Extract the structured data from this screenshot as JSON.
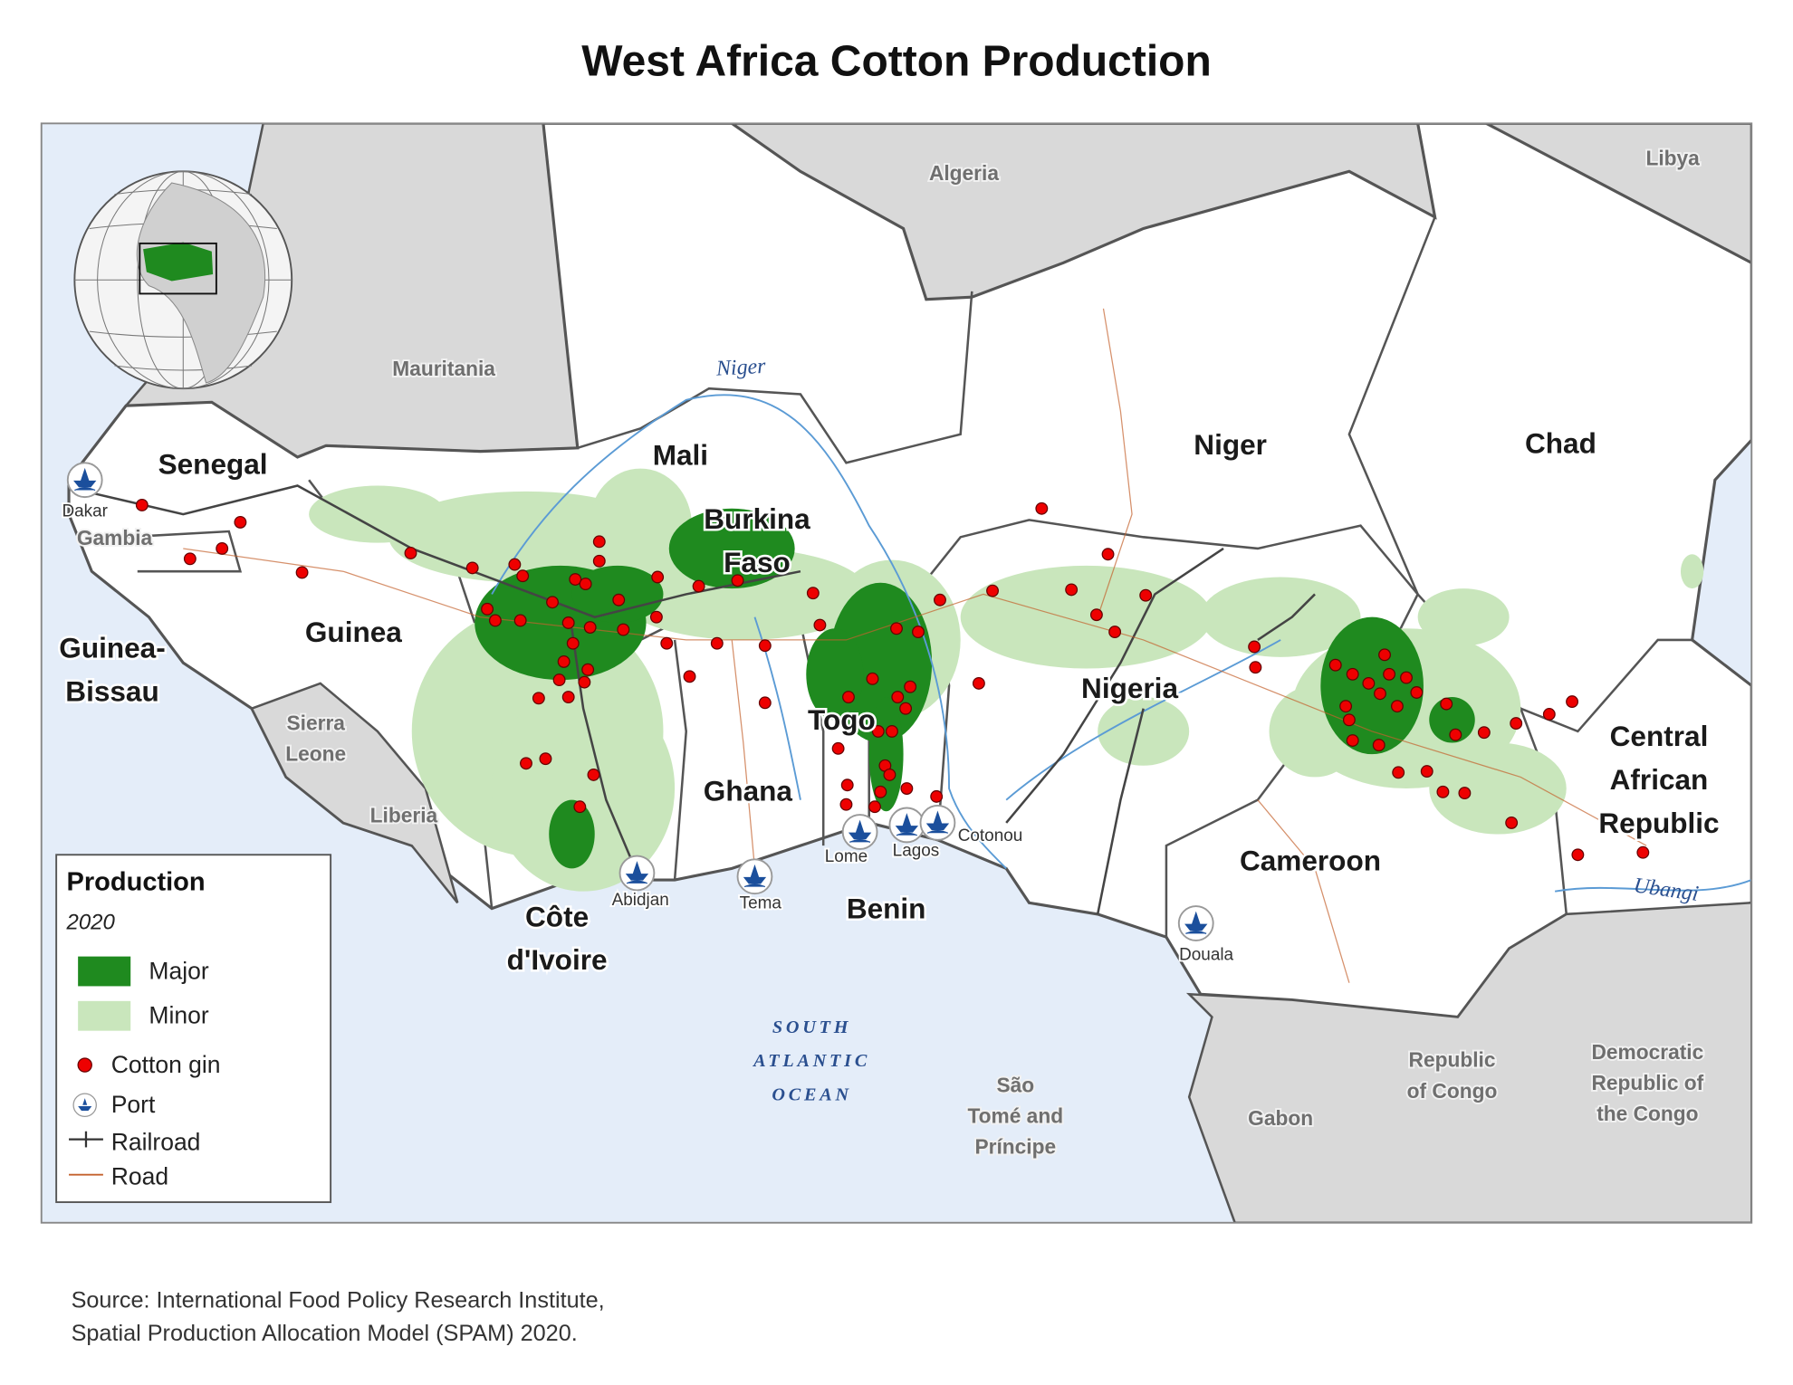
{
  "title": "West Africa Cotton Production",
  "map": {
    "countries": [
      [
        "Senegal"
      ],
      [
        "Mali"
      ],
      [
        "Burkina",
        "Faso"
      ],
      [
        "Niger"
      ],
      [
        "Chad"
      ],
      [
        "Guinea"
      ],
      [
        "Guinea-",
        "Bissau"
      ],
      [
        "Togo"
      ],
      [
        "Ghana"
      ],
      [
        "Nigeria"
      ],
      [
        "Côte",
        "d'Ivoire"
      ],
      [
        "Benin"
      ],
      [
        "Cameroon"
      ],
      [
        "Central",
        "African",
        "Republic"
      ]
    ],
    "neighbors": [
      [
        "Algeria"
      ],
      [
        "Libya"
      ],
      [
        "Mauritania"
      ],
      [
        "Sierra",
        "Leone"
      ],
      [
        "Liberia"
      ],
      [
        "Gambia"
      ],
      [
        "Republic",
        "of Congo"
      ],
      [
        "Gabon"
      ],
      [
        "Democratic",
        "Republic of",
        "the Congo"
      ],
      [
        "São",
        "Tomé and",
        "Príncipe"
      ]
    ],
    "ocean": [
      "SOUTH",
      "ATLANTIC",
      "OCEAN"
    ],
    "rivers": [
      "Niger",
      "Ubangi"
    ],
    "ports": [
      "Dakar",
      "Abidjan",
      "Tema",
      "Lome",
      "Lagos",
      "Cotonou",
      "Douala"
    ]
  },
  "legend": {
    "title": "Production",
    "year": "2020",
    "items": [
      "Major",
      "Minor",
      "Cotton gin",
      "Port",
      "Railroad",
      "Road"
    ]
  },
  "source": [
    "Source: International Food Policy Research Institute,",
    "Spatial Production Allocation Model (SPAM) 2020."
  ]
}
